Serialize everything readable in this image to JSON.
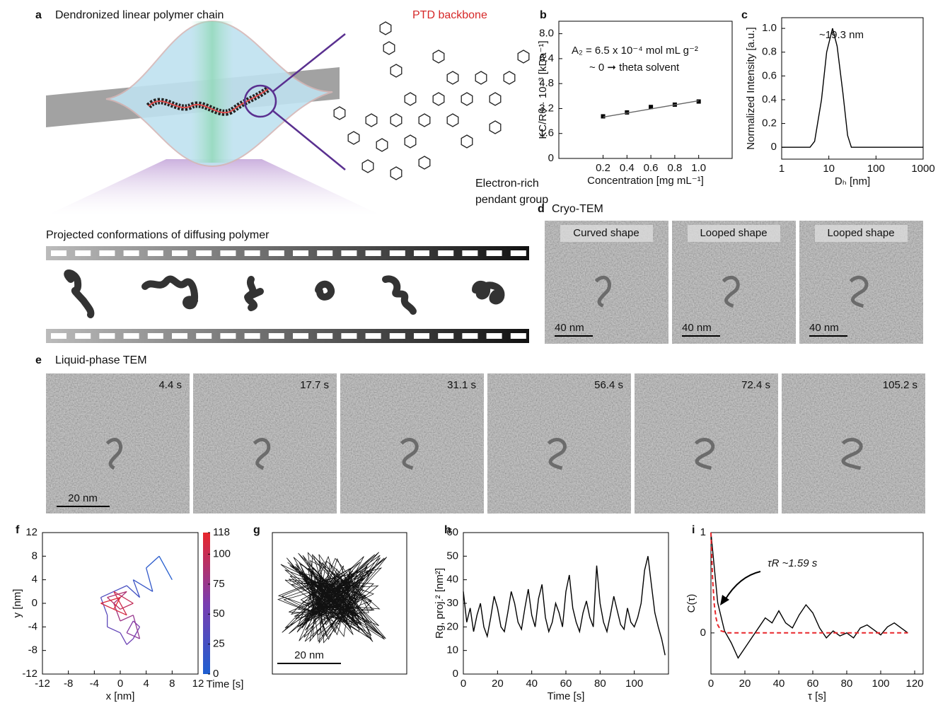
{
  "figure": {
    "panel_a": {
      "letter": "a",
      "title": "Dendronized linear polymer chain",
      "backbone_label": "PTD backbone",
      "pendant_label": [
        "Electron-rich",
        "pendant group"
      ],
      "projected_title": "Projected conformations of diffusing polymer"
    },
    "panel_d": {
      "letter": "d",
      "title": "Cryo-TEM",
      "images": [
        {
          "label": "Curved shape",
          "scale": "40 nm"
        },
        {
          "label": "Looped shape",
          "scale": "40 nm"
        },
        {
          "label": "Looped shape",
          "scale": "40 nm"
        }
      ]
    },
    "panel_e": {
      "letter": "e",
      "title": "Liquid-phase TEM",
      "times": [
        "4.4 s",
        "17.7 s",
        "31.1 s",
        "56.4 s",
        "72.4 s",
        "105.2 s"
      ],
      "scale": "20 nm"
    },
    "panel_g": {
      "letter": "g",
      "scale": "20 nm"
    }
  },
  "chart_data": [
    {
      "panel": "b",
      "type": "scatter",
      "xlabel": "Concentration [mg mL⁻¹]",
      "ylabel": "KC/Rθ · 10⁻³ [kDa⁻¹]",
      "xlim": [
        -0.17,
        1.28
      ],
      "ylim": [
        0,
        8.8
      ],
      "xticks": [
        0.2,
        0.4,
        0.6,
        0.8,
        {
          "value": 1,
          "label": "1.0"
        }
      ],
      "yticks": [
        0,
        1.6,
        3.2,
        4.8,
        6.4,
        {
          "value": 8,
          "label": "8.0"
        }
      ],
      "annotations": [
        "A₂ = 6.5 x 10⁻⁴ mol mL g⁻²",
        "~ 0 ➞ theta solvent"
      ],
      "series": [
        {
          "style": "markers",
          "color": "#000000",
          "x": [
            0.2,
            0.4,
            0.6,
            0.8,
            1.0
          ],
          "values": [
            2.7,
            2.95,
            3.3,
            3.45,
            3.65
          ]
        },
        {
          "style": "line",
          "color": "#666666",
          "x": [
            0.2,
            1.0
          ],
          "values": [
            2.65,
            3.7
          ]
        }
      ]
    },
    {
      "panel": "c",
      "type": "line",
      "xscale": "log",
      "xlabel": "Dₕ [nm]",
      "ylabel": "Normalized Intensity [a.u.]",
      "xlim": [
        1,
        1000
      ],
      "ylim": [
        -0.1,
        1.09
      ],
      "xticks": [
        1,
        10,
        100,
        1000
      ],
      "yticks": [
        0,
        0.2,
        0.4,
        0.6,
        0.8,
        {
          "value": 1,
          "label": "1.0"
        }
      ],
      "annotations": [
        "~19.3 nm"
      ],
      "series": [
        {
          "style": "line",
          "color": "#000000",
          "x": [
            1,
            4,
            5,
            7,
            9,
            12,
            15,
            20,
            25,
            30,
            1000
          ],
          "values": [
            0,
            0,
            0.05,
            0.4,
            0.8,
            1.0,
            0.85,
            0.45,
            0.1,
            0,
            0
          ]
        }
      ]
    },
    {
      "panel": "f",
      "type": "trajectory",
      "xlabel": "x [nm]",
      "ylabel": "y [nm]",
      "xlim": [
        -12,
        12
      ],
      "ylim": [
        -12,
        12
      ],
      "xticks": [
        -12,
        -8,
        -4,
        0,
        4,
        8,
        12
      ],
      "yticks": [
        -12,
        -8,
        -4,
        0,
        4,
        8,
        12
      ],
      "colorbar": {
        "label": "Time [s]",
        "lim": [
          0,
          118
        ],
        "ticks": [
          0,
          25,
          50,
          75,
          100,
          118
        ],
        "colors": [
          "#1e5fd0",
          "#7a3db0",
          "#e8262b"
        ]
      },
      "series": [
        {
          "style": "segments",
          "x": [
            8,
            6,
            4,
            5,
            2,
            3,
            1,
            -1,
            -3,
            -2,
            -2,
            0,
            1,
            2,
            3,
            2,
            1,
            3,
            2,
            0,
            -1,
            1,
            -2,
            0,
            2,
            -1,
            1,
            -3,
            0,
            -1
          ],
          "values": [
            4,
            8,
            6,
            2,
            4,
            1,
            3,
            2,
            1,
            -2,
            -4,
            -5,
            -7,
            -6,
            -4,
            -3,
            -5,
            -6,
            -2,
            -3,
            0,
            2,
            1,
            -1,
            0,
            2,
            -2,
            0,
            1,
            -1
          ],
          "t": [
            0,
            4,
            8,
            12,
            16,
            20,
            24,
            28,
            32,
            36,
            40,
            44,
            48,
            52,
            56,
            60,
            64,
            68,
            72,
            76,
            80,
            84,
            88,
            92,
            96,
            100,
            104,
            108,
            112,
            116
          ]
        }
      ]
    },
    {
      "panel": "h",
      "type": "line",
      "xlabel": "Time [s]",
      "ylabel": "Rg, proj.² [nm²]",
      "xlim": [
        0,
        120
      ],
      "ylim": [
        0,
        60
      ],
      "xticks": [
        0,
        20,
        40,
        60,
        80,
        100
      ],
      "yticks": [
        0,
        10,
        20,
        30,
        40,
        50,
        60
      ],
      "series": [
        {
          "style": "line",
          "color": "#000000",
          "x": [
            0,
            2,
            4,
            6,
            8,
            10,
            12,
            14,
            16,
            18,
            20,
            22,
            24,
            26,
            28,
            30,
            32,
            34,
            36,
            38,
            40,
            42,
            44,
            46,
            48,
            50,
            52,
            54,
            56,
            58,
            60,
            62,
            64,
            66,
            68,
            70,
            72,
            74,
            76,
            78,
            80,
            82,
            84,
            86,
            88,
            90,
            92,
            94,
            96,
            98,
            100,
            102,
            104,
            106,
            108,
            110,
            112,
            114,
            116,
            118
          ],
          "values": [
            35,
            22,
            28,
            18,
            25,
            30,
            20,
            16,
            24,
            33,
            28,
            20,
            18,
            26,
            35,
            30,
            22,
            19,
            28,
            36,
            25,
            20,
            32,
            38,
            24,
            18,
            22,
            30,
            26,
            20,
            35,
            42,
            28,
            22,
            18,
            26,
            31,
            24,
            20,
            46,
            30,
            22,
            18,
            25,
            33,
            27,
            21,
            19,
            28,
            22,
            20,
            24,
            30,
            44,
            50,
            38,
            26,
            20,
            15,
            8
          ]
        }
      ]
    },
    {
      "panel": "i",
      "type": "line",
      "xlabel": "τ [s]",
      "ylabel": "C(τ)",
      "xlim": [
        0,
        125
      ],
      "ylim": [
        -0.41,
        1
      ],
      "xticks": [
        0,
        20,
        40,
        60,
        80,
        100,
        120
      ],
      "yticks": [
        0,
        1
      ],
      "annotations": [
        "τR ~1.59 s"
      ],
      "series": [
        {
          "style": "line",
          "color": "#000000",
          "x": [
            0,
            4,
            8,
            12,
            16,
            20,
            24,
            28,
            32,
            36,
            40,
            44,
            48,
            52,
            56,
            60,
            64,
            68,
            72,
            76,
            80,
            84,
            88,
            92,
            96,
            100,
            104,
            108,
            112,
            116
          ],
          "values": [
            1.0,
            0.3,
            0.02,
            -0.1,
            -0.25,
            -0.15,
            -0.05,
            0.05,
            0.15,
            0.1,
            0.22,
            0.1,
            0.05,
            0.18,
            0.28,
            0.2,
            0.05,
            -0.05,
            0.02,
            -0.03,
            0.0,
            -0.05,
            0.05,
            0.08,
            0.03,
            -0.02,
            0.06,
            0.1,
            0.05,
            0.0
          ]
        },
        {
          "style": "line",
          "dash": true,
          "color": "#e8262b",
          "x": [
            0,
            1,
            2,
            3,
            4,
            6,
            10,
            20,
            40,
            60,
            80,
            100,
            116
          ],
          "values": [
            1,
            0.53,
            0.28,
            0.15,
            0.08,
            0.02,
            0,
            0,
            0,
            0,
            0,
            0,
            0
          ]
        }
      ]
    }
  ]
}
